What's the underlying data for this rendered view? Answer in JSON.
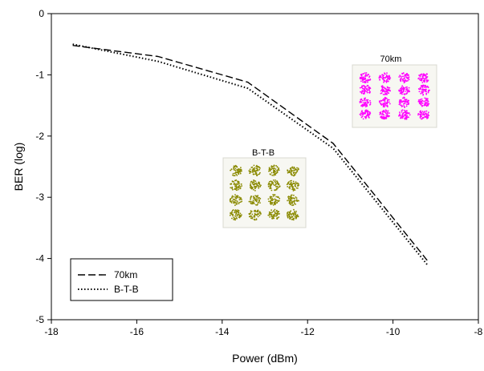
{
  "chart_data": {
    "type": "line",
    "title": "",
    "xlabel": "Power (dBm)",
    "ylabel": "BER (log)",
    "xlim": [
      -18,
      -8
    ],
    "ylim": [
      -5,
      0
    ],
    "x_ticks": [
      -18,
      -16,
      -14,
      -12,
      -10,
      -8
    ],
    "y_ticks": [
      0,
      -1,
      -2,
      -3,
      -4,
      -5
    ],
    "grid": false,
    "legend_position": "bottom-left",
    "series": [
      {
        "name": "70km",
        "line_style": "dashed",
        "color": "#000000",
        "x": [
          -17.5,
          -15.5,
          -13.4,
          -11.4,
          -9.2
        ],
        "y": [
          -0.52,
          -0.7,
          -1.12,
          -2.12,
          -4.03
        ]
      },
      {
        "name": "B-T-B",
        "line_style": "dotted",
        "color": "#000000",
        "x": [
          -17.5,
          -15.5,
          -13.4,
          -11.4,
          -9.2
        ],
        "y": [
          -0.5,
          -0.78,
          -1.22,
          -2.2,
          -4.1
        ]
      }
    ],
    "annotations": [
      {
        "label": "70km",
        "kind": "16-QAM constellation inset",
        "color": "#ff00ff"
      },
      {
        "label": "B-T-B",
        "kind": "16-QAM constellation inset",
        "color": "#8a8a00"
      }
    ]
  }
}
